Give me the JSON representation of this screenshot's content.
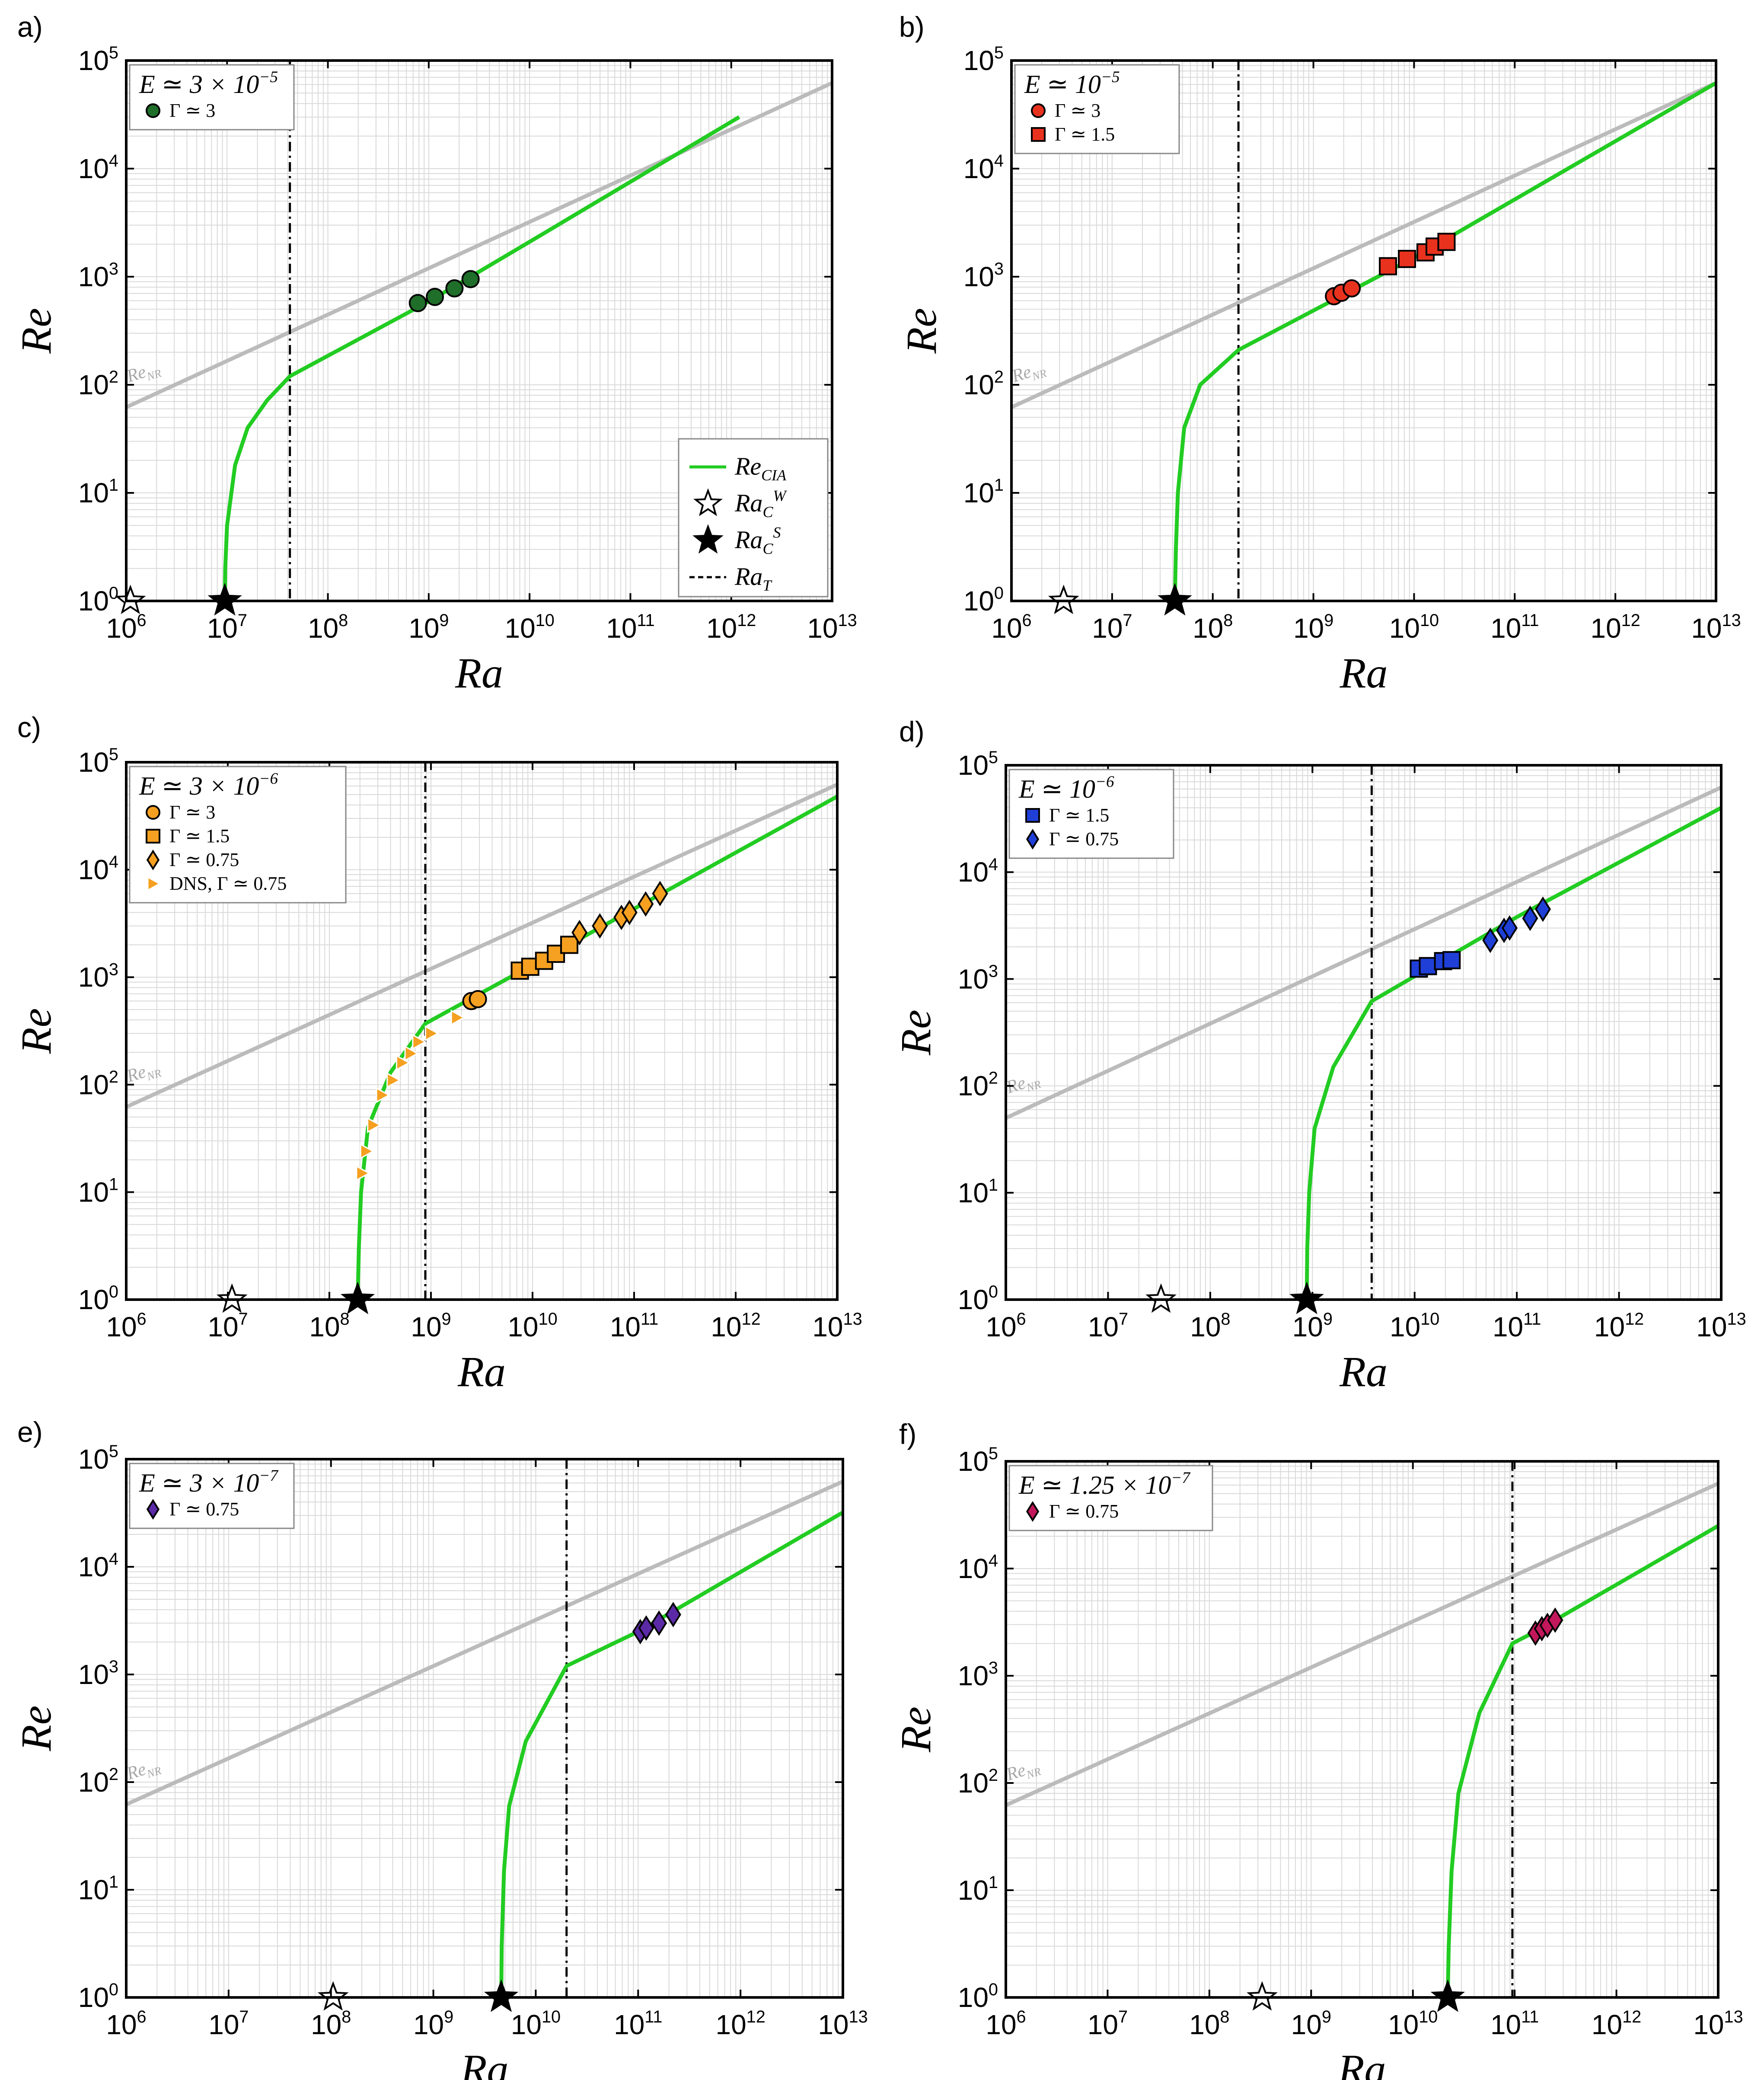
{
  "shared": {
    "xlabel": "Ra",
    "ylabel": "Re",
    "renr_label": "Re_NR",
    "x_tick_labels": [
      "10^6",
      "10^7",
      "10^8",
      "10^9",
      "10^10",
      "10^11",
      "10^12",
      "10^13"
    ],
    "y_tick_labels": [
      "10^0",
      "10^1",
      "10^2",
      "10^3",
      "10^4",
      "10^5"
    ],
    "main_legend": {
      "items": [
        {
          "kind": "line",
          "label": "Re_CIA"
        },
        {
          "kind": "open-star",
          "label": "Ra_C^W"
        },
        {
          "kind": "filled-star",
          "label": "Ra_C^S"
        },
        {
          "kind": "dashed",
          "label": "Ra_T"
        }
      ]
    },
    "colors": {
      "cia": "#22cc22",
      "renr": "#bbbbbb",
      "grid": "#d9d9d9",
      "vline": "#000000"
    }
  },
  "chart_data": [
    {
      "panel": "a)",
      "type": "line",
      "xscale": "log",
      "yscale": "log",
      "xlim": [
        1000000.0,
        10000000000000.0
      ],
      "ylim": [
        1,
        100000.0
      ],
      "xlabel": "Ra",
      "ylabel": "Re",
      "legend_title": "E ≃ 3 × 10^−5",
      "ra_cw": 1100000.0,
      "ra_cs": 9500000.0,
      "ra_t": 42000000.0,
      "re_nr_line": [
        [
          1000000.0,
          62
        ],
        [
          10000000000000.0,
          62000
        ]
      ],
      "cia_curve": [
        [
          9500000.0,
          1
        ],
        [
          9600000.0,
          2
        ],
        [
          10000000.0,
          5
        ],
        [
          12000000.0,
          18
        ],
        [
          16000000.0,
          40
        ],
        [
          25000000.0,
          72
        ],
        [
          42000000.0,
          120
        ],
        [
          1000000000.0,
          590
        ],
        [
          10000000000.0,
          2100
        ],
        [
          1200000000000.0,
          30000
        ]
      ],
      "series": [
        {
          "name": "Γ ≃ 3",
          "marker": "circle",
          "color": "#1f6e2a",
          "points": [
            [
              780000000.0,
              570
            ],
            [
              1150000000.0,
              650
            ],
            [
              1800000000.0,
              780
            ],
            [
              2600000000.0,
              950
            ]
          ]
        }
      ],
      "show_main_legend": true
    },
    {
      "panel": "b)",
      "type": "line",
      "xscale": "log",
      "yscale": "log",
      "xlim": [
        1000000.0,
        10000000000000.0
      ],
      "ylim": [
        1,
        100000.0
      ],
      "xlabel": "Ra",
      "ylabel": "Re",
      "legend_title": "E ≃ 10^−5",
      "ra_cw": 3300000.0,
      "ra_cs": 42000000.0,
      "ra_t": 180000000.0,
      "re_nr_line": [
        [
          1000000.0,
          62
        ],
        [
          10000000000000.0,
          62000
        ]
      ],
      "cia_curve": [
        [
          42000000.0,
          1
        ],
        [
          43000000.0,
          3
        ],
        [
          45000000.0,
          10
        ],
        [
          52000000.0,
          40
        ],
        [
          75000000.0,
          100
        ],
        [
          180000000.0,
          210
        ],
        [
          10000000000.0,
          1500
        ],
        [
          10000000000000.0,
          62000
        ]
      ],
      "series": [
        {
          "name": "Γ ≃ 3",
          "marker": "circle",
          "color": "#e8321e",
          "points": [
            [
              1600000000.0,
              660
            ],
            [
              1900000000.0,
              710
            ],
            [
              2400000000.0,
              780
            ]
          ]
        },
        {
          "name": "Γ ≃ 1.5",
          "marker": "square",
          "color": "#e8321e",
          "points": [
            [
              5500000000.0,
              1250
            ],
            [
              8500000000.0,
              1460
            ],
            [
              13000000000.0,
              1680
            ],
            [
              16000000000.0,
              1900
            ],
            [
              21000000000.0,
              2100
            ]
          ]
        }
      ],
      "show_main_legend": false
    },
    {
      "panel": "c)",
      "type": "line",
      "xscale": "log",
      "yscale": "log",
      "xlim": [
        1000000.0,
        10000000000000.0
      ],
      "ylim": [
        1,
        100000.0
      ],
      "xlabel": "Ra",
      "ylabel": "Re",
      "legend_title": "E ≃ 3 × 10^−6",
      "ra_cw": 11000000.0,
      "ra_cs": 190000000.0,
      "ra_t": 880000000.0,
      "re_nr_line": [
        [
          1000000.0,
          62
        ],
        [
          10000000000000.0,
          62000
        ]
      ],
      "cia_curve": [
        [
          190000000.0,
          1
        ],
        [
          195000000.0,
          3
        ],
        [
          205000000.0,
          10
        ],
        [
          240000000.0,
          40
        ],
        [
          400000000.0,
          130
        ],
        [
          880000000.0,
          370
        ],
        [
          10000000000.0,
          1300
        ],
        [
          10000000000000.0,
          48000
        ]
      ],
      "series": [
        {
          "name": "Γ ≃ 3",
          "marker": "circle",
          "color": "#f5a020",
          "points": [
            [
              2500000000.0,
              600
            ],
            [
              2900000000.0,
              625
            ]
          ]
        },
        {
          "name": "Γ ≃ 1.5",
          "marker": "square",
          "color": "#f5a020",
          "points": [
            [
              7500000000.0,
              1150
            ],
            [
              9500000000.0,
              1250
            ],
            [
              13000000000.0,
              1420
            ],
            [
              17000000000.0,
              1650
            ],
            [
              23000000000.0,
              2000
            ]
          ]
        },
        {
          "name": "Γ ≃ 0.75",
          "marker": "diamond",
          "color": "#f5a020",
          "points": [
            [
              29000000000.0,
              2600
            ],
            [
              46000000000.0,
              3000
            ],
            [
              75000000000.0,
              3600
            ],
            [
              90000000000.0,
              4000
            ],
            [
              130000000000.0,
              4800
            ],
            [
              180000000000.0,
              6000
            ]
          ]
        },
        {
          "name": "DNS, Γ ≃ 0.75",
          "marker": "triangle",
          "color": "#f5a020",
          "points": [
            [
              210000000.0,
              15
            ],
            [
              230000000.0,
              24
            ],
            [
              270000000.0,
              42
            ],
            [
              330000000.0,
              80
            ],
            [
              420000000.0,
              110
            ],
            [
              520000000.0,
              160
            ],
            [
              630000000.0,
              195
            ],
            [
              750000000.0,
              250
            ],
            [
              1000000000.0,
              300
            ],
            [
              1800000000.0,
              420
            ]
          ]
        }
      ],
      "show_main_legend": false
    },
    {
      "panel": "d)",
      "type": "line",
      "xscale": "log",
      "yscale": "log",
      "xlim": [
        1000000.0,
        10000000000000.0
      ],
      "ylim": [
        1,
        100000.0
      ],
      "xlabel": "Ra",
      "ylabel": "Re",
      "legend_title": "E ≃ 10^−6",
      "ra_cw": 33000000.0,
      "ra_cs": 880000000.0,
      "ra_t": 3800000000.0,
      "re_nr_line": [
        [
          1000000.0,
          50
        ],
        [
          10000000000000.0,
          62000
        ]
      ],
      "cia_curve": [
        [
          880000000.0,
          1
        ],
        [
          890000000.0,
          3
        ],
        [
          930000000.0,
          10
        ],
        [
          1050000000.0,
          40
        ],
        [
          1600000000.0,
          150
        ],
        [
          3800000000.0,
          620
        ],
        [
          100000000000.0,
          3800
        ],
        [
          10000000000000.0,
          40000
        ]
      ],
      "series": [
        {
          "name": "Γ ≃ 1.5",
          "marker": "square",
          "color": "#1f3fd6",
          "points": [
            [
              11000000000.0,
              1250
            ],
            [
              13500000000.0,
              1320
            ],
            [
              19000000000.0,
              1470
            ],
            [
              23000000000.0,
              1500
            ]
          ]
        },
        {
          "name": "Γ ≃ 0.75",
          "marker": "diamond",
          "color": "#1f3fd6",
          "points": [
            [
              55000000000.0,
              2300
            ],
            [
              75000000000.0,
              2850
            ],
            [
              85000000000.0,
              3000
            ],
            [
              135000000000.0,
              3700
            ],
            [
              180000000000.0,
              4500
            ]
          ]
        }
      ],
      "show_main_legend": false
    },
    {
      "panel": "e)",
      "type": "line",
      "xscale": "log",
      "yscale": "log",
      "xlim": [
        1000000.0,
        10000000000000.0
      ],
      "ylim": [
        1,
        100000.0
      ],
      "xlabel": "Ra",
      "ylabel": "Re",
      "legend_title": "E ≃ 3 × 10^−7",
      "ra_cw": 105000000.0,
      "ra_cs": 4600000000.0,
      "ra_t": 20000000000.0,
      "re_nr_line": [
        [
          1000000.0,
          62
        ],
        [
          10000000000000.0,
          62000
        ]
      ],
      "cia_curve": [
        [
          4600000000.0,
          1
        ],
        [
          4650000000.0,
          3
        ],
        [
          4900000000.0,
          15
        ],
        [
          5500000000.0,
          60
        ],
        [
          8000000000.0,
          240
        ],
        [
          20000000000.0,
          1200
        ],
        [
          100000000000.0,
          2500
        ],
        [
          10000000000000.0,
          32000
        ]
      ],
      "series": [
        {
          "name": "Γ ≃ 0.75",
          "marker": "diamond",
          "color": "#5b2aa6",
          "points": [
            [
              105000000000.0,
              2500
            ],
            [
              120000000000.0,
              2700
            ],
            [
              160000000000.0,
              3000
            ],
            [
              220000000000.0,
              3600
            ]
          ]
        }
      ],
      "show_main_legend": false
    },
    {
      "panel": "f)",
      "type": "line",
      "xscale": "log",
      "yscale": "log",
      "xlim": [
        1000000.0,
        10000000000000.0
      ],
      "ylim": [
        1,
        100000.0
      ],
      "xlabel": "Ra",
      "ylabel": "Re",
      "legend_title": "E ≃ 1.25 × 10^−7",
      "ra_cw": 330000000.0,
      "ra_cs": 22000000000.0,
      "ra_t": 95000000000.0,
      "re_nr_line": [
        [
          1000000.0,
          62
        ],
        [
          10000000000000.0,
          62000
        ]
      ],
      "cia_curve": [
        [
          22000000000.0,
          1
        ],
        [
          22500000000.0,
          3
        ],
        [
          24000000000.0,
          15
        ],
        [
          28000000000.0,
          80
        ],
        [
          45000000000.0,
          450
        ],
        [
          95000000000.0,
          2000
        ],
        [
          150000000000.0,
          2500
        ],
        [
          10000000000000.0,
          25000
        ]
      ],
      "series": [
        {
          "name": "Γ ≃ 0.75",
          "marker": "diamond",
          "color": "#c2185b",
          "points": [
            [
              160000000000.0,
              2500
            ],
            [
              185000000000.0,
              2750
            ],
            [
              210000000000.0,
              2950
            ],
            [
              250000000000.0,
              3300
            ]
          ]
        }
      ],
      "show_main_legend": false
    }
  ]
}
